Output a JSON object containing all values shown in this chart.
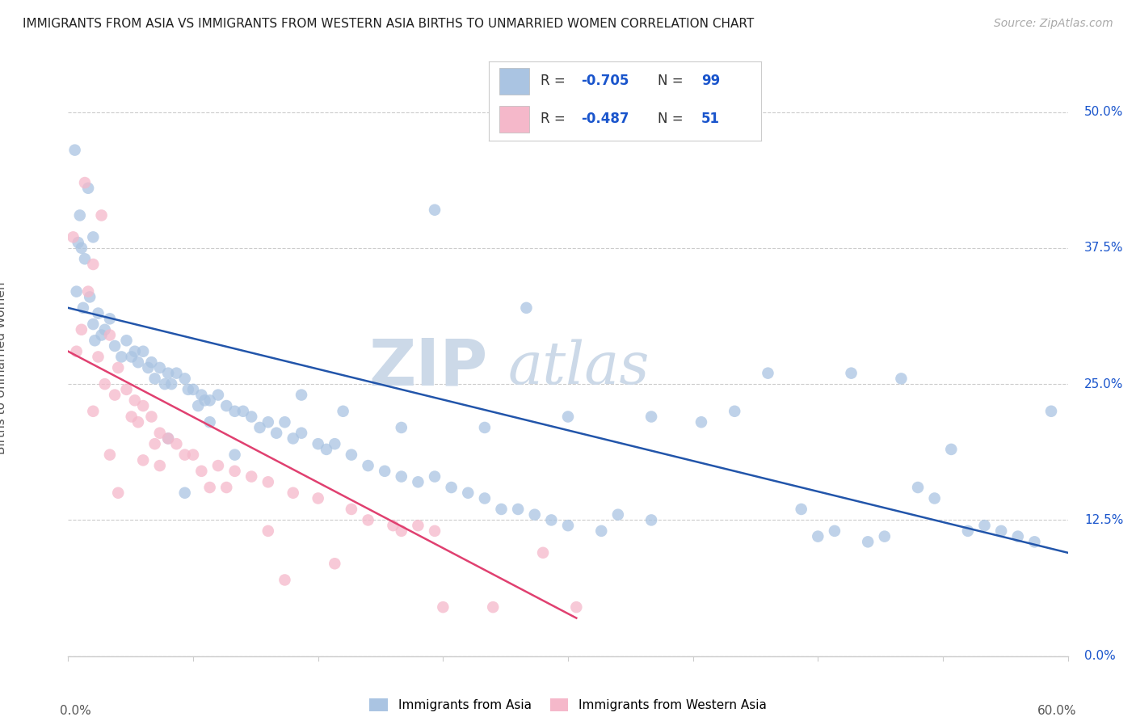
{
  "title": "IMMIGRANTS FROM ASIA VS IMMIGRANTS FROM WESTERN ASIA BIRTHS TO UNMARRIED WOMEN CORRELATION CHART",
  "source": "Source: ZipAtlas.com",
  "ylabel": "Births to Unmarried Women",
  "ytick_values": [
    0.0,
    12.5,
    25.0,
    37.5,
    50.0
  ],
  "xmin": 0.0,
  "xmax": 60.0,
  "ymin": 0.0,
  "ymax": 53.0,
  "color_blue": "#aac4e2",
  "color_pink": "#f5b8ca",
  "color_blue_line": "#2255aa",
  "color_pink_line": "#e04070",
  "color_blue_text": "#1a55cc",
  "watermark_color": "#ccd9e8",
  "blue_dots": [
    [
      0.4,
      46.5
    ],
    [
      1.2,
      43.0
    ],
    [
      0.7,
      40.5
    ],
    [
      1.5,
      38.5
    ],
    [
      0.6,
      38.0
    ],
    [
      0.8,
      37.5
    ],
    [
      1.0,
      36.5
    ],
    [
      0.5,
      33.5
    ],
    [
      1.3,
      33.0
    ],
    [
      0.9,
      32.0
    ],
    [
      1.8,
      31.5
    ],
    [
      2.5,
      31.0
    ],
    [
      1.5,
      30.5
    ],
    [
      2.2,
      30.0
    ],
    [
      2.0,
      29.5
    ],
    [
      1.6,
      29.0
    ],
    [
      3.5,
      29.0
    ],
    [
      2.8,
      28.5
    ],
    [
      4.0,
      28.0
    ],
    [
      3.2,
      27.5
    ],
    [
      4.5,
      28.0
    ],
    [
      5.0,
      27.0
    ],
    [
      3.8,
      27.5
    ],
    [
      4.2,
      27.0
    ],
    [
      5.5,
      26.5
    ],
    [
      6.0,
      26.0
    ],
    [
      4.8,
      26.5
    ],
    [
      5.2,
      25.5
    ],
    [
      6.5,
      26.0
    ],
    [
      7.0,
      25.5
    ],
    [
      5.8,
      25.0
    ],
    [
      6.2,
      25.0
    ],
    [
      7.5,
      24.5
    ],
    [
      8.0,
      24.0
    ],
    [
      7.2,
      24.5
    ],
    [
      8.5,
      23.5
    ],
    [
      9.0,
      24.0
    ],
    [
      7.8,
      23.0
    ],
    [
      8.2,
      23.5
    ],
    [
      9.5,
      23.0
    ],
    [
      10.0,
      22.5
    ],
    [
      11.0,
      22.0
    ],
    [
      10.5,
      22.5
    ],
    [
      12.0,
      21.5
    ],
    [
      11.5,
      21.0
    ],
    [
      13.0,
      21.5
    ],
    [
      12.5,
      20.5
    ],
    [
      14.0,
      20.5
    ],
    [
      13.5,
      20.0
    ],
    [
      15.0,
      19.5
    ],
    [
      15.5,
      19.0
    ],
    [
      16.0,
      19.5
    ],
    [
      17.0,
      18.5
    ],
    [
      18.0,
      17.5
    ],
    [
      19.0,
      17.0
    ],
    [
      20.0,
      16.5
    ],
    [
      21.0,
      16.0
    ],
    [
      22.0,
      16.5
    ],
    [
      23.0,
      15.5
    ],
    [
      24.0,
      15.0
    ],
    [
      25.0,
      14.5
    ],
    [
      26.0,
      13.5
    ],
    [
      27.0,
      13.5
    ],
    [
      28.0,
      13.0
    ],
    [
      29.0,
      12.5
    ],
    [
      30.0,
      12.0
    ],
    [
      32.0,
      11.5
    ],
    [
      22.0,
      41.0
    ],
    [
      27.5,
      32.0
    ],
    [
      35.0,
      22.0
    ],
    [
      38.0,
      21.5
    ],
    [
      40.0,
      22.5
    ],
    [
      33.0,
      13.0
    ],
    [
      35.0,
      12.5
    ],
    [
      42.0,
      26.0
    ],
    [
      44.0,
      13.5
    ],
    [
      45.0,
      11.0
    ],
    [
      46.0,
      11.5
    ],
    [
      48.0,
      10.5
    ],
    [
      49.0,
      11.0
    ],
    [
      50.0,
      25.5
    ],
    [
      51.0,
      15.5
    ],
    [
      52.0,
      14.5
    ],
    [
      53.0,
      19.0
    ],
    [
      54.0,
      11.5
    ],
    [
      55.0,
      12.0
    ],
    [
      56.0,
      11.5
    ],
    [
      57.0,
      11.0
    ],
    [
      58.0,
      10.5
    ],
    [
      59.0,
      22.5
    ],
    [
      6.0,
      20.0
    ],
    [
      7.0,
      15.0
    ],
    [
      8.5,
      21.5
    ],
    [
      10.0,
      18.5
    ],
    [
      14.0,
      24.0
    ],
    [
      16.5,
      22.5
    ],
    [
      20.0,
      21.0
    ],
    [
      25.0,
      21.0
    ],
    [
      30.0,
      22.0
    ],
    [
      47.0,
      26.0
    ]
  ],
  "pink_dots": [
    [
      0.3,
      38.5
    ],
    [
      1.0,
      43.5
    ],
    [
      2.0,
      40.5
    ],
    [
      1.5,
      36.0
    ],
    [
      1.2,
      33.5
    ],
    [
      0.8,
      30.0
    ],
    [
      2.5,
      29.5
    ],
    [
      1.8,
      27.5
    ],
    [
      3.0,
      26.5
    ],
    [
      2.2,
      25.0
    ],
    [
      3.5,
      24.5
    ],
    [
      4.0,
      23.5
    ],
    [
      2.8,
      24.0
    ],
    [
      4.5,
      23.0
    ],
    [
      3.8,
      22.0
    ],
    [
      5.0,
      22.0
    ],
    [
      4.2,
      21.5
    ],
    [
      5.5,
      20.5
    ],
    [
      6.0,
      20.0
    ],
    [
      5.2,
      19.5
    ],
    [
      6.5,
      19.5
    ],
    [
      7.0,
      18.5
    ],
    [
      8.5,
      15.5
    ],
    [
      9.5,
      15.5
    ],
    [
      12.0,
      11.5
    ],
    [
      13.0,
      7.0
    ],
    [
      16.0,
      8.5
    ],
    [
      22.5,
      4.5
    ],
    [
      30.5,
      4.5
    ],
    [
      28.5,
      9.5
    ],
    [
      3.0,
      15.0
    ],
    [
      1.5,
      22.5
    ],
    [
      0.5,
      28.0
    ],
    [
      2.5,
      18.5
    ],
    [
      4.5,
      18.0
    ],
    [
      5.5,
      17.5
    ],
    [
      7.5,
      18.5
    ],
    [
      8.0,
      17.0
    ],
    [
      9.0,
      17.5
    ],
    [
      10.0,
      17.0
    ],
    [
      11.0,
      16.5
    ],
    [
      12.0,
      16.0
    ],
    [
      13.5,
      15.0
    ],
    [
      15.0,
      14.5
    ],
    [
      17.0,
      13.5
    ],
    [
      18.0,
      12.5
    ],
    [
      19.5,
      12.0
    ],
    [
      20.0,
      11.5
    ],
    [
      21.0,
      12.0
    ],
    [
      22.0,
      11.5
    ],
    [
      25.5,
      4.5
    ]
  ],
  "blue_line_x": [
    0.0,
    60.0
  ],
  "blue_line_y": [
    32.0,
    9.5
  ],
  "pink_line_x": [
    0.0,
    30.5
  ],
  "pink_line_y": [
    28.0,
    3.5
  ]
}
